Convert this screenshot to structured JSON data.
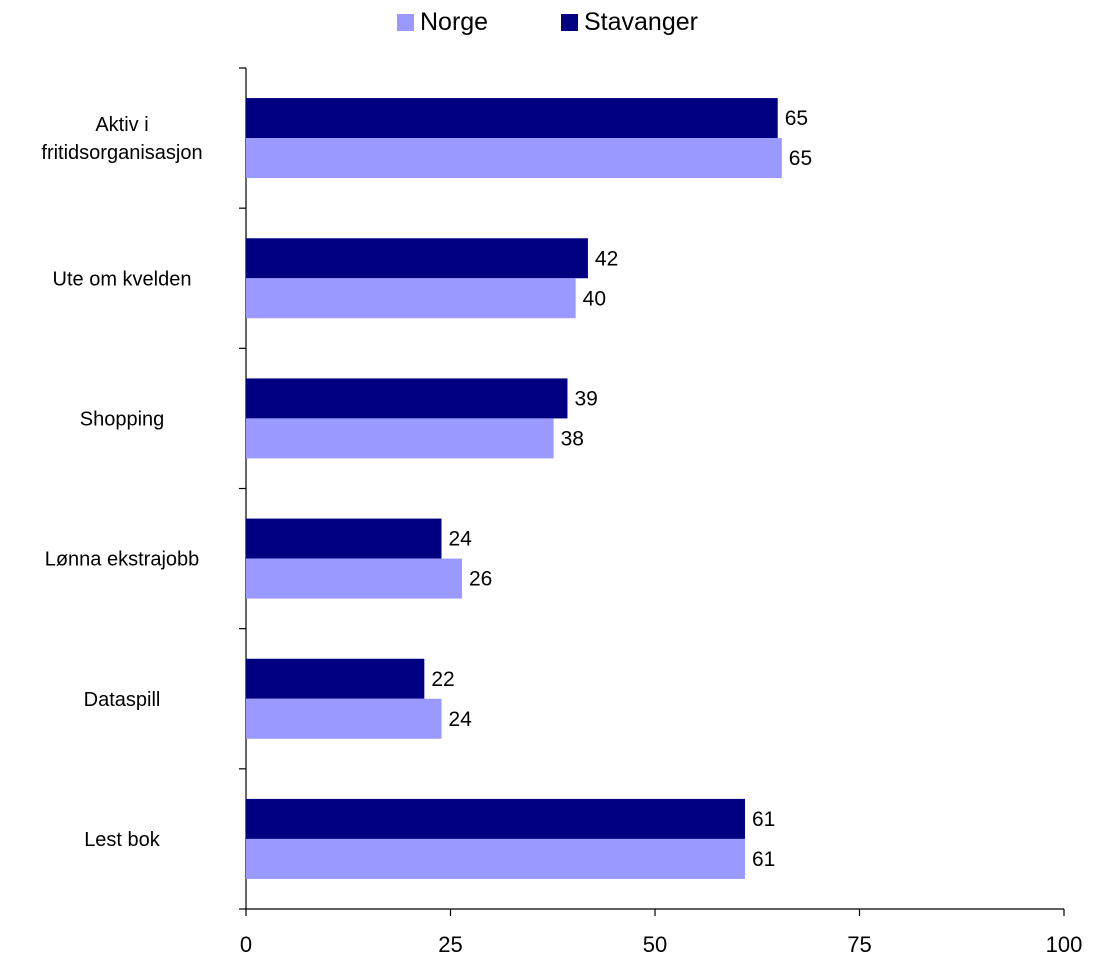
{
  "chart_data": {
    "type": "bar",
    "orientation": "horizontal",
    "categories": [
      "Aktiv i fritidsorganisasjon",
      "Ute om kvelden",
      "Shopping",
      "Lønna ekstrajobb",
      "Dataspill",
      "Lest bok"
    ],
    "category_lines": [
      [
        "Aktiv i",
        "fritidsorganisasjon"
      ],
      [
        "Ute om kvelden"
      ],
      [
        "Shopping"
      ],
      [
        "Lønna ekstrajobb"
      ],
      [
        "Dataspill"
      ],
      [
        "Lest bok"
      ]
    ],
    "series": [
      {
        "name": "Norge",
        "color": "#9999ff",
        "values": [
          65.5,
          40.3,
          37.6,
          26.4,
          23.9,
          61.0
        ],
        "labels": [
          "65",
          "40",
          "38",
          "26",
          "24",
          "61"
        ]
      },
      {
        "name": "Stavanger",
        "color": "#000080",
        "values": [
          65.0,
          41.8,
          39.3,
          23.9,
          21.8,
          61.0
        ],
        "labels": [
          "65",
          "42",
          "39",
          "24",
          "22",
          "61"
        ]
      }
    ],
    "xlim": [
      0,
      100
    ],
    "xticks": [
      0,
      25,
      50,
      75,
      100
    ],
    "xtick_labels": [
      "0",
      "25",
      "50",
      "75",
      "100"
    ],
    "grid": false,
    "legend_position": "top",
    "title": "",
    "xlabel": "",
    "ylabel": ""
  }
}
